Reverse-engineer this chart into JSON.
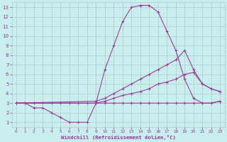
{
  "xlabel": "Windchill (Refroidissement éolien,°C)",
  "bg_color": "#c8eeee",
  "line_color": "#993399",
  "grid_color": "#b0c8c8",
  "xlim": [
    -0.5,
    23.5
  ],
  "ylim": [
    0.5,
    13.5
  ],
  "xticks": [
    0,
    1,
    2,
    3,
    4,
    5,
    6,
    7,
    8,
    9,
    10,
    11,
    12,
    13,
    14,
    15,
    16,
    17,
    18,
    19,
    20,
    21,
    22,
    23
  ],
  "yticks": [
    1,
    2,
    3,
    4,
    5,
    6,
    7,
    8,
    9,
    10,
    11,
    12,
    13
  ],
  "lines": [
    {
      "x": [
        0,
        1,
        2,
        3,
        4,
        5,
        6,
        7,
        8,
        9,
        10,
        11,
        12,
        13,
        14,
        15,
        16,
        17,
        18,
        19,
        20,
        21,
        22,
        23
      ],
      "y": [
        3.0,
        3.0,
        2.5,
        2.5,
        2.0,
        1.5,
        1.0,
        1.0,
        1.0,
        3.0,
        6.5,
        9.0,
        11.5,
        13.0,
        13.2,
        13.2,
        12.5,
        10.5,
        8.5,
        5.5,
        3.5,
        3.0,
        3.0,
        3.2
      ]
    },
    {
      "x": [
        0,
        9,
        10,
        11,
        12,
        13,
        14,
        15,
        16,
        17,
        18,
        19,
        20,
        21,
        22,
        23
      ],
      "y": [
        3.0,
        3.2,
        3.5,
        4.0,
        4.5,
        5.0,
        5.5,
        6.0,
        6.5,
        7.0,
        7.5,
        8.5,
        6.5,
        5.0,
        4.5,
        4.2
      ]
    },
    {
      "x": [
        0,
        9,
        10,
        11,
        12,
        13,
        14,
        15,
        16,
        17,
        18,
        19,
        20,
        21,
        22,
        23
      ],
      "y": [
        3.0,
        3.0,
        3.2,
        3.5,
        3.8,
        4.0,
        4.2,
        4.5,
        5.0,
        5.2,
        5.5,
        6.0,
        6.2,
        5.0,
        4.5,
        4.2
      ]
    },
    {
      "x": [
        0,
        1,
        2,
        3,
        4,
        5,
        6,
        7,
        8,
        9,
        10,
        11,
        12,
        13,
        14,
        15,
        16,
        17,
        18,
        19,
        20,
        21,
        22,
        23
      ],
      "y": [
        3.0,
        3.0,
        3.0,
        3.0,
        3.0,
        3.0,
        3.0,
        3.0,
        3.0,
        3.0,
        3.0,
        3.0,
        3.0,
        3.0,
        3.0,
        3.0,
        3.0,
        3.0,
        3.0,
        3.0,
        3.0,
        3.0,
        3.0,
        3.2
      ]
    }
  ]
}
